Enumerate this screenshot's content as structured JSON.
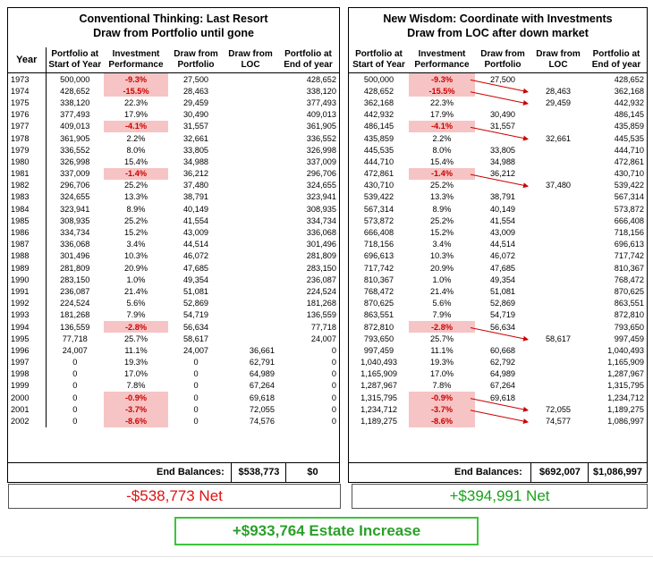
{
  "left": {
    "title_line1": "Conventional Thinking: Last Resort",
    "title_line2": "Draw from Portfolio until gone",
    "headers": {
      "year": "Year",
      "portfolio": "Portfolio at Start of Year",
      "perf": "Investment Performance",
      "draw_portfolio": "Draw from Portfolio",
      "draw_loc": "Draw from LOC",
      "end": "Portfolio at End of year"
    },
    "rows": [
      {
        "year": "1973",
        "start": "500,000",
        "perf": "-9.3%",
        "neg": true,
        "dp": "27,500",
        "dl": "",
        "end": "428,652"
      },
      {
        "year": "1974",
        "start": "428,652",
        "perf": "-15.5%",
        "neg": true,
        "dp": "28,463",
        "dl": "",
        "end": "338,120"
      },
      {
        "year": "1975",
        "start": "338,120",
        "perf": "22.3%",
        "neg": false,
        "dp": "29,459",
        "dl": "",
        "end": "377,493"
      },
      {
        "year": "1976",
        "start": "377,493",
        "perf": "17.9%",
        "neg": false,
        "dp": "30,490",
        "dl": "",
        "end": "409,013"
      },
      {
        "year": "1977",
        "start": "409,013",
        "perf": "-4.1%",
        "neg": true,
        "dp": "31,557",
        "dl": "",
        "end": "361,905"
      },
      {
        "year": "1978",
        "start": "361,905",
        "perf": "2.2%",
        "neg": false,
        "dp": "32,661",
        "dl": "",
        "end": "336,552"
      },
      {
        "year": "1979",
        "start": "336,552",
        "perf": "8.0%",
        "neg": false,
        "dp": "33,805",
        "dl": "",
        "end": "326,998"
      },
      {
        "year": "1980",
        "start": "326,998",
        "perf": "15.4%",
        "neg": false,
        "dp": "34,988",
        "dl": "",
        "end": "337,009"
      },
      {
        "year": "1981",
        "start": "337,009",
        "perf": "-1.4%",
        "neg": true,
        "dp": "36,212",
        "dl": "",
        "end": "296,706"
      },
      {
        "year": "1982",
        "start": "296,706",
        "perf": "25.2%",
        "neg": false,
        "dp": "37,480",
        "dl": "",
        "end": "324,655"
      },
      {
        "year": "1983",
        "start": "324,655",
        "perf": "13.3%",
        "neg": false,
        "dp": "38,791",
        "dl": "",
        "end": "323,941"
      },
      {
        "year": "1984",
        "start": "323,941",
        "perf": "8.9%",
        "neg": false,
        "dp": "40,149",
        "dl": "",
        "end": "308,935"
      },
      {
        "year": "1985",
        "start": "308,935",
        "perf": "25.2%",
        "neg": false,
        "dp": "41,554",
        "dl": "",
        "end": "334,734"
      },
      {
        "year": "1986",
        "start": "334,734",
        "perf": "15.2%",
        "neg": false,
        "dp": "43,009",
        "dl": "",
        "end": "336,068"
      },
      {
        "year": "1987",
        "start": "336,068",
        "perf": "3.4%",
        "neg": false,
        "dp": "44,514",
        "dl": "",
        "end": "301,496"
      },
      {
        "year": "1988",
        "start": "301,496",
        "perf": "10.3%",
        "neg": false,
        "dp": "46,072",
        "dl": "",
        "end": "281,809"
      },
      {
        "year": "1989",
        "start": "281,809",
        "perf": "20.9%",
        "neg": false,
        "dp": "47,685",
        "dl": "",
        "end": "283,150"
      },
      {
        "year": "1990",
        "start": "283,150",
        "perf": "1.0%",
        "neg": false,
        "dp": "49,354",
        "dl": "",
        "end": "236,087"
      },
      {
        "year": "1991",
        "start": "236,087",
        "perf": "21.4%",
        "neg": false,
        "dp": "51,081",
        "dl": "",
        "end": "224,524"
      },
      {
        "year": "1992",
        "start": "224,524",
        "perf": "5.6%",
        "neg": false,
        "dp": "52,869",
        "dl": "",
        "end": "181,268"
      },
      {
        "year": "1993",
        "start": "181,268",
        "perf": "7.9%",
        "neg": false,
        "dp": "54,719",
        "dl": "",
        "end": "136,559"
      },
      {
        "year": "1994",
        "start": "136,559",
        "perf": "-2.8%",
        "neg": true,
        "dp": "56,634",
        "dl": "",
        "end": "77,718"
      },
      {
        "year": "1995",
        "start": "77,718",
        "perf": "25.7%",
        "neg": false,
        "dp": "58,617",
        "dl": "",
        "end": "24,007"
      },
      {
        "year": "1996",
        "start": "24,007",
        "perf": "11.1%",
        "neg": false,
        "dp": "24,007",
        "dl": "36,661",
        "end": "0"
      },
      {
        "year": "1997",
        "start": "0",
        "perf": "19.3%",
        "neg": false,
        "dp": "0",
        "dl": "62,791",
        "end": "0"
      },
      {
        "year": "1998",
        "start": "0",
        "perf": "17.0%",
        "neg": false,
        "dp": "0",
        "dl": "64,989",
        "end": "0"
      },
      {
        "year": "1999",
        "start": "0",
        "perf": "7.8%",
        "neg": false,
        "dp": "0",
        "dl": "67,264",
        "end": "0"
      },
      {
        "year": "2000",
        "start": "0",
        "perf": "-0.9%",
        "neg": true,
        "dp": "0",
        "dl": "69,618",
        "end": "0"
      },
      {
        "year": "2001",
        "start": "0",
        "perf": "-3.7%",
        "neg": true,
        "dp": "0",
        "dl": "72,055",
        "end": "0"
      },
      {
        "year": "2002",
        "start": "0",
        "perf": "-8.6%",
        "neg": true,
        "dp": "0",
        "dl": "74,576",
        "end": "0"
      }
    ],
    "end_label": "End Balances:",
    "end_loc": "$538,773",
    "end_portfolio": "$0",
    "net": "-$538,773  Net"
  },
  "right": {
    "title_line1": "New Wisdom: Coordinate with Investments",
    "title_line2": "Draw from LOC after down market",
    "headers": {
      "portfolio": "Portfolio at Start of Year",
      "perf": "Investment Performance",
      "draw_portfolio": "Draw from Portfolio",
      "draw_loc": "Draw from LOC",
      "end": "Portfolio at End of year"
    },
    "rows": [
      {
        "start": "500,000",
        "perf": "-9.3%",
        "neg": true,
        "dp": "27,500",
        "dl": "",
        "end": "428,652"
      },
      {
        "start": "428,652",
        "perf": "-15.5%",
        "neg": true,
        "dp": "",
        "dl": "28,463",
        "end": "362,168"
      },
      {
        "start": "362,168",
        "perf": "22.3%",
        "neg": false,
        "dp": "",
        "dl": "29,459",
        "end": "442,932"
      },
      {
        "start": "442,932",
        "perf": "17.9%",
        "neg": false,
        "dp": "30,490",
        "dl": "",
        "end": "486,145"
      },
      {
        "start": "486,145",
        "perf": "-4.1%",
        "neg": true,
        "dp": "31,557",
        "dl": "",
        "end": "435,859"
      },
      {
        "start": "435,859",
        "perf": "2.2%",
        "neg": false,
        "dp": "",
        "dl": "32,661",
        "end": "445,535"
      },
      {
        "start": "445,535",
        "perf": "8.0%",
        "neg": false,
        "dp": "33,805",
        "dl": "",
        "end": "444,710"
      },
      {
        "start": "444,710",
        "perf": "15.4%",
        "neg": false,
        "dp": "34,988",
        "dl": "",
        "end": "472,861"
      },
      {
        "start": "472,861",
        "perf": "-1.4%",
        "neg": true,
        "dp": "36,212",
        "dl": "",
        "end": "430,710"
      },
      {
        "start": "430,710",
        "perf": "25.2%",
        "neg": false,
        "dp": "",
        "dl": "37,480",
        "end": "539,422"
      },
      {
        "start": "539,422",
        "perf": "13.3%",
        "neg": false,
        "dp": "38,791",
        "dl": "",
        "end": "567,314"
      },
      {
        "start": "567,314",
        "perf": "8.9%",
        "neg": false,
        "dp": "40,149",
        "dl": "",
        "end": "573,872"
      },
      {
        "start": "573,872",
        "perf": "25.2%",
        "neg": false,
        "dp": "41,554",
        "dl": "",
        "end": "666,408"
      },
      {
        "start": "666,408",
        "perf": "15.2%",
        "neg": false,
        "dp": "43,009",
        "dl": "",
        "end": "718,156"
      },
      {
        "start": "718,156",
        "perf": "3.4%",
        "neg": false,
        "dp": "44,514",
        "dl": "",
        "end": "696,613"
      },
      {
        "start": "696,613",
        "perf": "10.3%",
        "neg": false,
        "dp": "46,072",
        "dl": "",
        "end": "717,742"
      },
      {
        "start": "717,742",
        "perf": "20.9%",
        "neg": false,
        "dp": "47,685",
        "dl": "",
        "end": "810,367"
      },
      {
        "start": "810,367",
        "perf": "1.0%",
        "neg": false,
        "dp": "49,354",
        "dl": "",
        "end": "768,472"
      },
      {
        "start": "768,472",
        "perf": "21.4%",
        "neg": false,
        "dp": "51,081",
        "dl": "",
        "end": "870,625"
      },
      {
        "start": "870,625",
        "perf": "5.6%",
        "neg": false,
        "dp": "52,869",
        "dl": "",
        "end": "863,551"
      },
      {
        "start": "863,551",
        "perf": "7.9%",
        "neg": false,
        "dp": "54,719",
        "dl": "",
        "end": "872,810"
      },
      {
        "start": "872,810",
        "perf": "-2.8%",
        "neg": true,
        "dp": "56,634",
        "dl": "",
        "end": "793,650"
      },
      {
        "start": "793,650",
        "perf": "25.7%",
        "neg": false,
        "dp": "",
        "dl": "58,617",
        "end": "997,459"
      },
      {
        "start": "997,459",
        "perf": "11.1%",
        "neg": false,
        "dp": "60,668",
        "dl": "",
        "end": "1,040,493"
      },
      {
        "start": "1,040,493",
        "perf": "19.3%",
        "neg": false,
        "dp": "62,792",
        "dl": "",
        "end": "1,165,909"
      },
      {
        "start": "1,165,909",
        "perf": "17.0%",
        "neg": false,
        "dp": "64,989",
        "dl": "",
        "end": "1,287,967"
      },
      {
        "start": "1,287,967",
        "perf": "7.8%",
        "neg": false,
        "dp": "67,264",
        "dl": "",
        "end": "1,315,795"
      },
      {
        "start": "1,315,795",
        "perf": "-0.9%",
        "neg": true,
        "dp": "69,618",
        "dl": "",
        "end": "1,234,712"
      },
      {
        "start": "1,234,712",
        "perf": "-3.7%",
        "neg": true,
        "dp": "",
        "dl": "72,055",
        "end": "1,189,275"
      },
      {
        "start": "1,189,275",
        "perf": "-8.6%",
        "neg": true,
        "dp": "",
        "dl": "74,577",
        "end": "1,086,997"
      }
    ],
    "end_label": "End Balances:",
    "end_loc": "$692,007",
    "end_portfolio": "$1,086,997",
    "net": "+$394,991 Net"
  },
  "estate": "+$933,764 Estate Increase",
  "colors": {
    "negative": "#cc0000",
    "negative_bg": "#f6c4c4",
    "net_loss": "#e01010",
    "net_gain": "#1aa21a",
    "estate_border": "#3cc43c"
  }
}
